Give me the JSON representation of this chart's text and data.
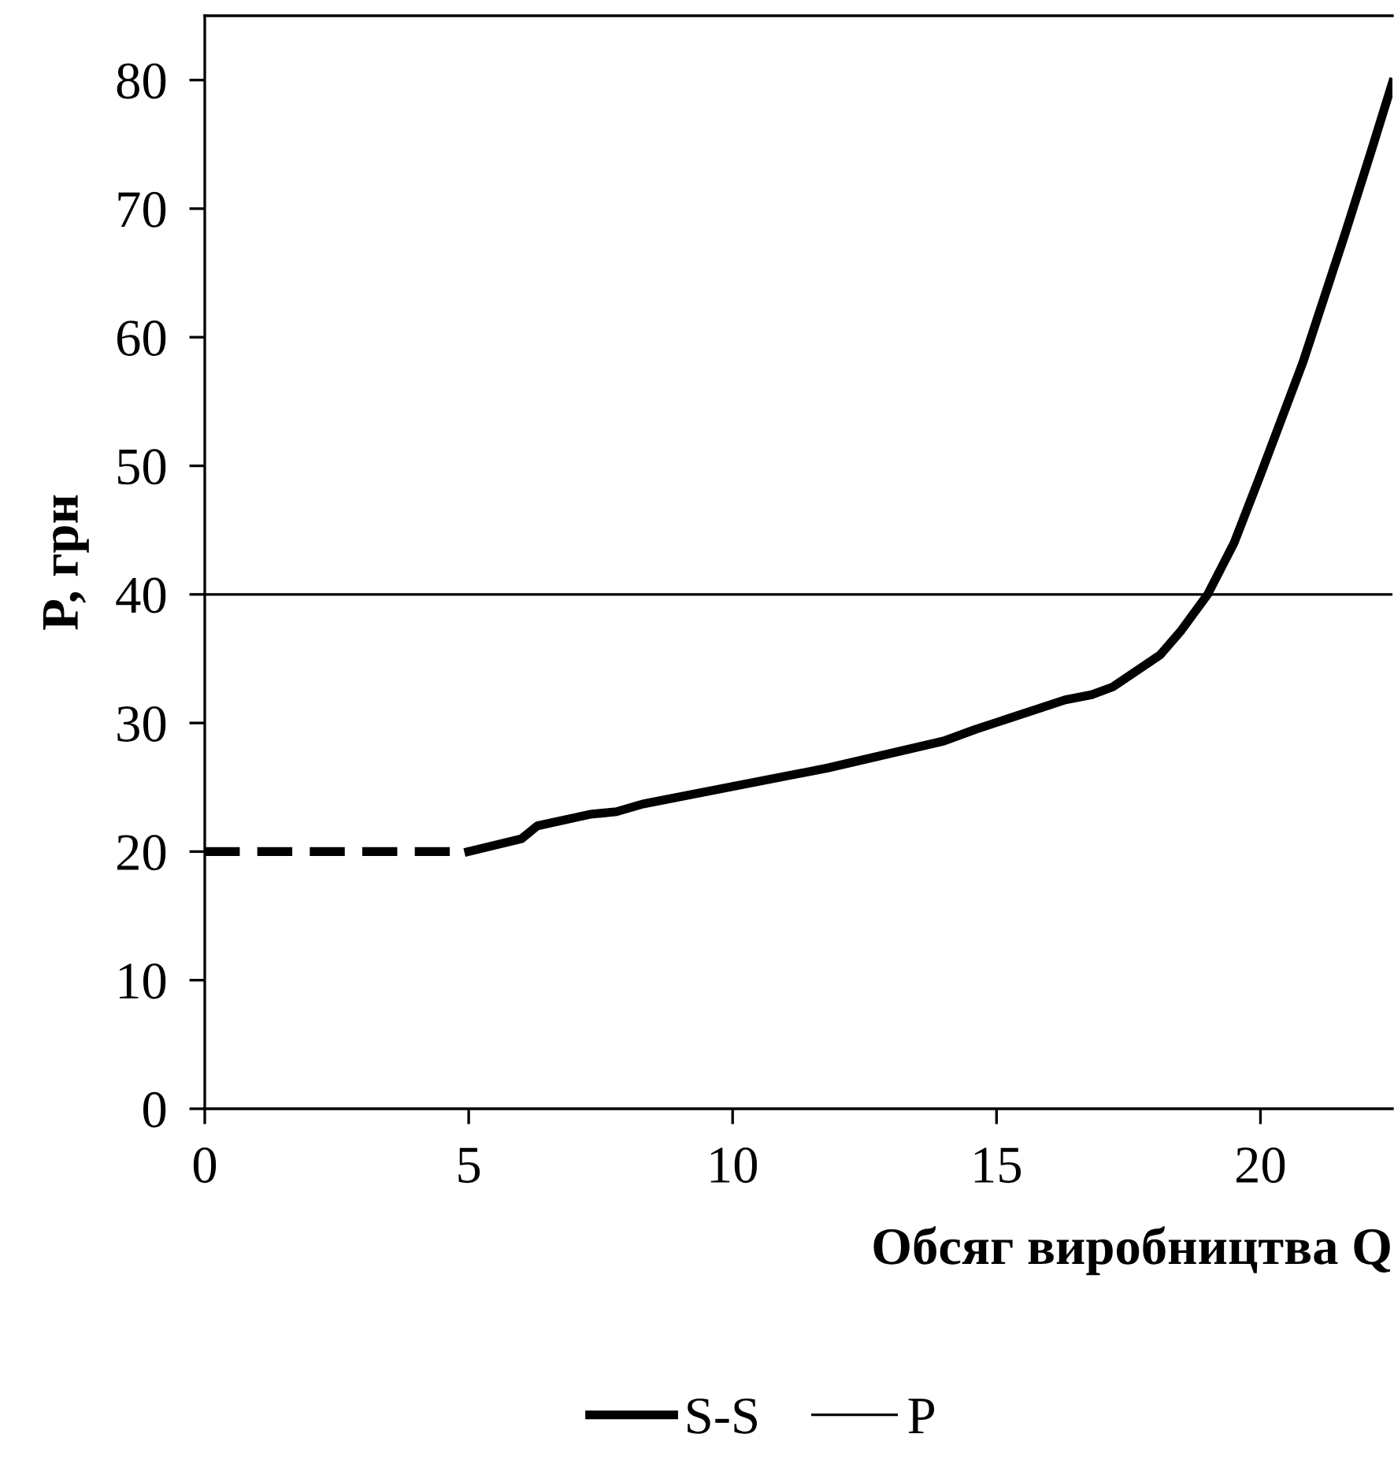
{
  "chart_data": {
    "type": "line",
    "xlabel": "Обсяг виробництва Q",
    "ylabel": "P, грн",
    "xlim": [
      0,
      22.5
    ],
    "ylim": [
      0,
      85
    ],
    "xticks": [
      0,
      5,
      10,
      15,
      20
    ],
    "yticks": [
      0,
      10,
      20,
      30,
      40,
      50,
      60,
      70,
      80
    ],
    "grid": false,
    "legend": "bottom",
    "marker": "none",
    "series": [
      {
        "color": "#000000",
        "line_style": "dashed",
        "x": [
          0,
          5
        ],
        "values": [
          20,
          20
        ]
      },
      {
        "name": "S-S",
        "color": "#000000",
        "line_style": "solid",
        "x": [
          5,
          6,
          6.3,
          7.3,
          7.8,
          8.3,
          11.8,
          14,
          14.6,
          16.3,
          16.8,
          17.2,
          18.1,
          18.5,
          19,
          19.5,
          20,
          20.8,
          21.6,
          22.1,
          22.5
        ],
        "values": [
          20,
          21,
          22,
          22.9,
          23.1,
          23.7,
          26.5,
          28.6,
          29.5,
          31.8,
          32.2,
          32.8,
          35.3,
          37.2,
          40,
          44,
          49.3,
          58,
          68,
          74.5,
          79.8
        ]
      },
      {
        "name": "P",
        "color": "#000000",
        "line_style": "solid",
        "x": [
          0,
          22.5
        ],
        "values": [
          40,
          40
        ]
      }
    ]
  }
}
